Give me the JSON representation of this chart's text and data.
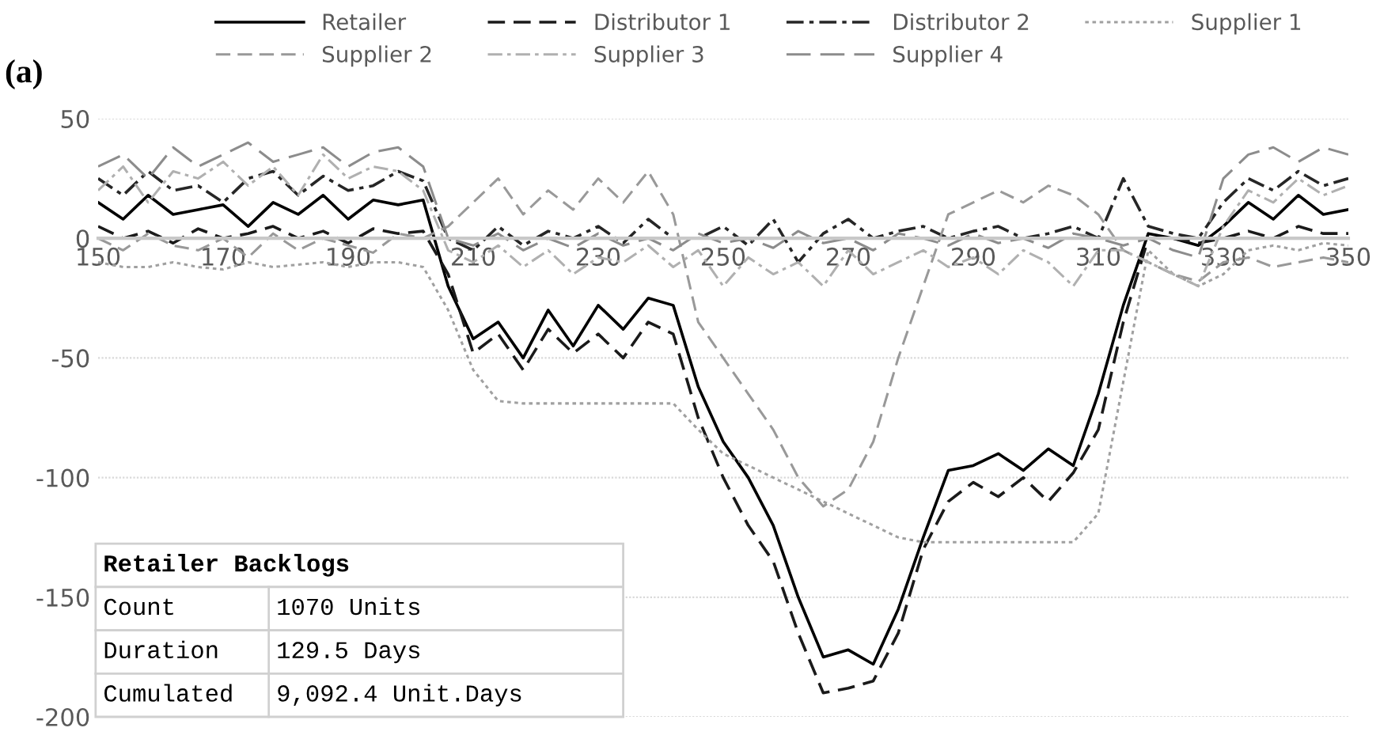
{
  "chart_data": {
    "type": "line",
    "title": "(a)",
    "x": [
      150,
      154,
      158,
      162,
      166,
      170,
      174,
      178,
      182,
      186,
      190,
      194,
      198,
      202,
      206,
      210,
      214,
      218,
      222,
      226,
      230,
      234,
      238,
      242,
      246,
      250,
      254,
      258,
      262,
      266,
      270,
      274,
      278,
      282,
      286,
      290,
      294,
      298,
      302,
      306,
      310,
      314,
      318,
      322,
      326,
      330,
      334,
      338,
      342,
      346,
      350
    ],
    "series": [
      {
        "name": "Retailer",
        "color": "#000000",
        "line_style": "solid",
        "values": [
          15,
          8,
          18,
          10,
          12,
          14,
          5,
          15,
          10,
          18,
          8,
          16,
          14,
          16,
          -20,
          -42,
          -35,
          -50,
          -30,
          -45,
          -28,
          -38,
          -25,
          -28,
          -62,
          -85,
          -100,
          -120,
          -150,
          -175,
          -172,
          -178,
          -155,
          -125,
          -97,
          -95,
          -90,
          -97,
          -88,
          -95,
          -65,
          -28,
          2,
          0,
          -3,
          5,
          15,
          8,
          18,
          10,
          12
        ]
      },
      {
        "name": "Distributor 1",
        "color": "#1a1a1a",
        "line_style": "dashed",
        "values": [
          5,
          0,
          3,
          -2,
          4,
          0,
          2,
          5,
          0,
          3,
          -2,
          4,
          2,
          3,
          -15,
          -48,
          -40,
          -55,
          -38,
          -48,
          -40,
          -50,
          -35,
          -40,
          -75,
          -100,
          -120,
          -135,
          -165,
          -190,
          -188,
          -185,
          -165,
          -130,
          -110,
          -102,
          -108,
          -100,
          -110,
          -98,
          -80,
          -35,
          0,
          0,
          -2,
          0,
          3,
          0,
          5,
          2,
          2
        ]
      },
      {
        "name": "Distributor 2",
        "color": "#262626",
        "line_style": "dashdot",
        "values": [
          25,
          18,
          28,
          20,
          22,
          15,
          25,
          28,
          18,
          26,
          20,
          22,
          28,
          24,
          0,
          -5,
          5,
          -3,
          3,
          0,
          5,
          -2,
          8,
          0,
          0,
          5,
          -3,
          8,
          -10,
          2,
          8,
          0,
          3,
          5,
          0,
          3,
          5,
          0,
          2,
          5,
          0,
          25,
          5,
          2,
          0,
          15,
          25,
          20,
          28,
          22,
          25
        ]
      },
      {
        "name": "Supplier 1",
        "color": "#a0a0a0",
        "line_style": "dotted",
        "values": [
          -10,
          -12,
          -12,
          -10,
          -12,
          -13,
          -10,
          -12,
          -11,
          -10,
          -12,
          -10,
          -10,
          -12,
          -30,
          -55,
          -68,
          -69,
          -69,
          -69,
          -69,
          -69,
          -69,
          -69,
          -80,
          -90,
          -95,
          -100,
          -105,
          -110,
          -115,
          -120,
          -125,
          -127,
          -127,
          -127,
          -127,
          -127,
          -127,
          -127,
          -115,
          -60,
          -5,
          -15,
          -20,
          -15,
          -5,
          -3,
          -5,
          -2,
          -3
        ]
      },
      {
        "name": "Supplier 2",
        "color": "#999999",
        "line_style": "dashed",
        "values": [
          0,
          -5,
          2,
          -3,
          -5,
          0,
          -8,
          2,
          -5,
          0,
          -3,
          -6,
          2,
          0,
          5,
          15,
          25,
          10,
          20,
          12,
          25,
          15,
          28,
          10,
          -35,
          -50,
          -65,
          -80,
          -100,
          -112,
          -105,
          -85,
          -50,
          -20,
          10,
          15,
          20,
          15,
          22,
          18,
          10,
          -5,
          -10,
          -15,
          -18,
          -10,
          -8,
          -12,
          -10,
          -8,
          -10
        ]
      },
      {
        "name": "Supplier 3",
        "color": "#b0b0b0",
        "line_style": "dashdot",
        "values": [
          20,
          30,
          15,
          28,
          25,
          32,
          22,
          30,
          18,
          35,
          25,
          30,
          28,
          20,
          -5,
          -10,
          -3,
          -12,
          -5,
          -15,
          -8,
          -10,
          -3,
          -12,
          -5,
          -20,
          -8,
          -15,
          -10,
          -20,
          -5,
          -15,
          -10,
          -5,
          -12,
          -8,
          -15,
          -5,
          -10,
          -20,
          -5,
          -5,
          -10,
          -15,
          -20,
          5,
          20,
          15,
          25,
          18,
          22
        ]
      },
      {
        "name": "Supplier 4",
        "color": "#8c8c8c",
        "line_style": "longdash",
        "values": [
          30,
          35,
          25,
          38,
          30,
          35,
          40,
          32,
          35,
          38,
          30,
          36,
          38,
          30,
          0,
          -3,
          2,
          -5,
          0,
          -4,
          2,
          -3,
          0,
          -5,
          2,
          -2,
          0,
          -4,
          3,
          -2,
          0,
          -5,
          2,
          0,
          -3,
          2,
          -2,
          0,
          -4,
          2,
          0,
          -3,
          0,
          -5,
          -8,
          25,
          35,
          38,
          32,
          38,
          35
        ]
      }
    ],
    "xlim": [
      150,
      350
    ],
    "xticks": [
      150,
      170,
      190,
      210,
      230,
      250,
      270,
      290,
      310,
      330,
      350
    ],
    "ylim": [
      -200,
      50
    ],
    "yticks": [
      -200,
      -150,
      -100,
      -50,
      0,
      50
    ],
    "grid": "y",
    "legend": "top",
    "annotations": [
      "Retailer Backlogs",
      "Count",
      "1070 Units",
      "Duration",
      "129.5 Days",
      "Cumulated",
      "9,092.4 Unit.Days"
    ]
  }
}
